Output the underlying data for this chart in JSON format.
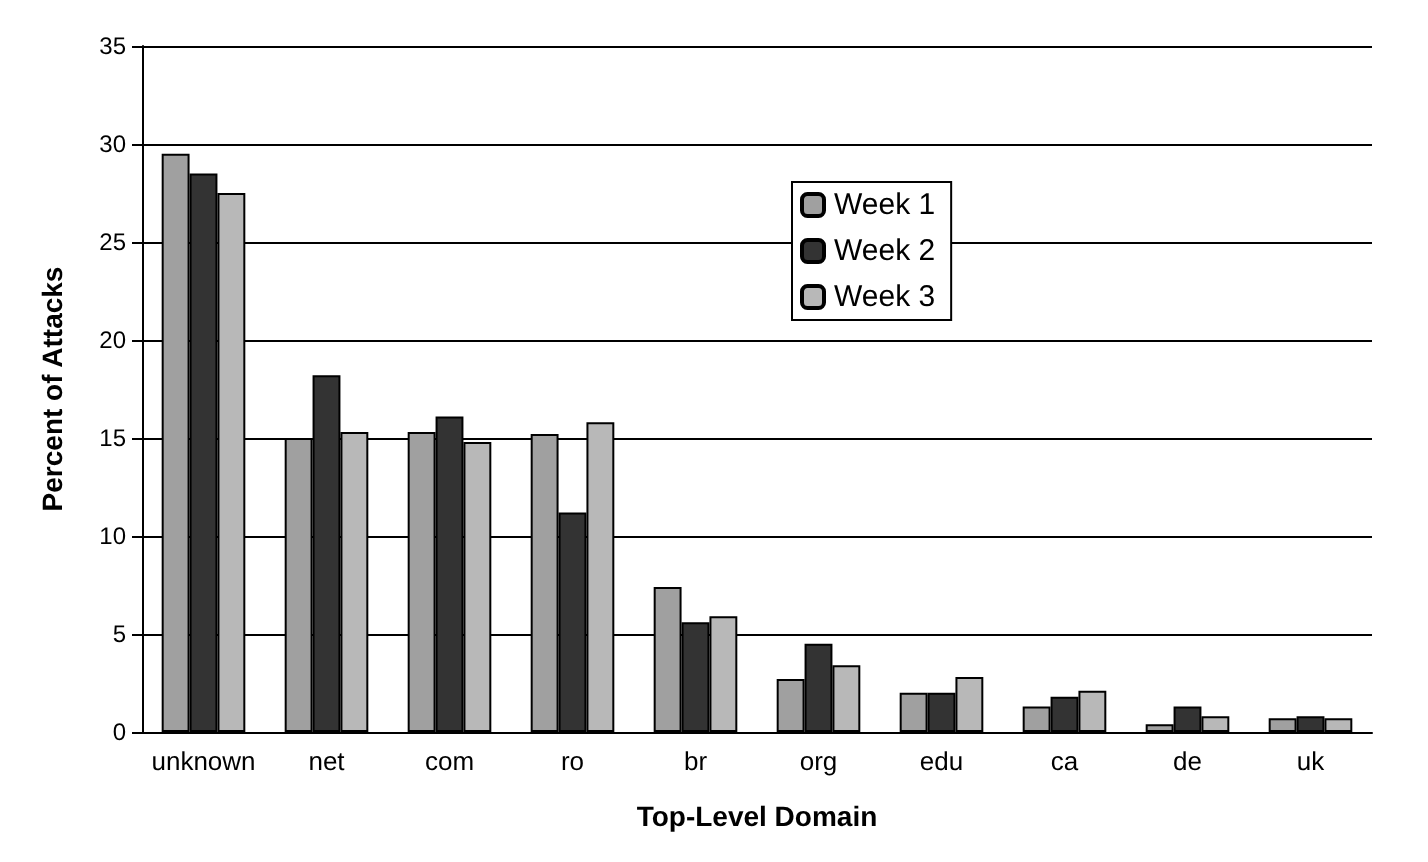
{
  "chart_data": {
    "type": "bar",
    "xlabel": "Top-Level Domain",
    "ylabel": "Percent of Attacks",
    "categories": [
      "unknown",
      "net",
      "com",
      "ro",
      "br",
      "org",
      "edu",
      "ca",
      "de",
      "uk"
    ],
    "series": [
      {
        "name": "Week 1",
        "color": "#a0a0a0",
        "values": [
          29.5,
          15,
          15.3,
          15.2,
          7.4,
          2.7,
          2,
          1.3,
          0.4,
          0.7
        ]
      },
      {
        "name": "Week 2",
        "color": "#333333",
        "values": [
          28.5,
          18.2,
          16.1,
          11.2,
          5.6,
          4.5,
          2,
          1.8,
          1.3,
          0.8
        ]
      },
      {
        "name": "Week 3",
        "color": "#b8b8b8",
        "values": [
          27.5,
          15.3,
          14.8,
          15.8,
          5.9,
          3.4,
          2.8,
          2.1,
          0.8,
          0.7
        ]
      }
    ],
    "ylim": [
      0,
      35
    ],
    "yticks": [
      0,
      5,
      10,
      15,
      20,
      25,
      30,
      35
    ],
    "grid": "y",
    "legend": "top right"
  }
}
